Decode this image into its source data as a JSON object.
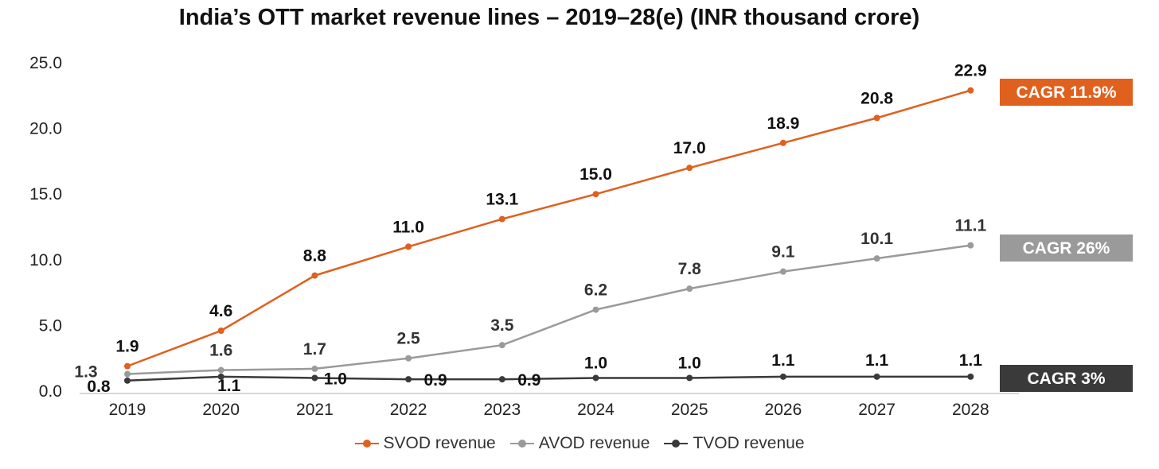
{
  "chart_data": {
    "type": "line",
    "title": "India’s OTT market revenue lines – 2019–28(e) (INR thousand crore)",
    "categories": [
      "2019",
      "2020",
      "2021",
      "2022",
      "2023",
      "2024",
      "2025",
      "2026",
      "2027",
      "2028"
    ],
    "ylim": [
      0,
      25
    ],
    "yticks": [
      "0.0",
      "5.0",
      "10.0",
      "15.0",
      "20.0",
      "25.0"
    ],
    "grid": false,
    "legend_position": "bottom",
    "series": [
      {
        "name": "SVOD revenue",
        "color": "#e0601e",
        "label_color": "#111111",
        "values": [
          1.9,
          4.6,
          8.8,
          11.0,
          13.1,
          15.0,
          17.0,
          18.9,
          20.8,
          22.9
        ],
        "labels": [
          "1.9",
          "4.6",
          "8.8",
          "11.0",
          "13.1",
          "15.0",
          "17.0",
          "18.9",
          "20.8",
          "22.9"
        ],
        "cagr": "CAGR 11.9%"
      },
      {
        "name": "AVOD revenue",
        "color": "#9a9a9a",
        "label_color": "#333333",
        "values": [
          1.3,
          1.6,
          1.7,
          2.5,
          3.5,
          6.2,
          7.8,
          9.1,
          10.1,
          11.1
        ],
        "labels": [
          "1.3",
          "1.6",
          "1.7",
          "2.5",
          "3.5",
          "6.2",
          "7.8",
          "9.1",
          "10.1",
          "11.1"
        ],
        "cagr": "CAGR 26%"
      },
      {
        "name": "TVOD revenue",
        "color": "#3a3a3a",
        "label_color": "#111111",
        "values": [
          0.8,
          1.1,
          1.0,
          0.9,
          0.9,
          1.0,
          1.0,
          1.1,
          1.1,
          1.1
        ],
        "labels": [
          "0.8",
          "1.1",
          "1.0",
          "0.9",
          "0.9",
          "1.0",
          "1.0",
          "1.1",
          "1.1",
          "1.1"
        ],
        "cagr": "CAGR 3%"
      }
    ]
  }
}
